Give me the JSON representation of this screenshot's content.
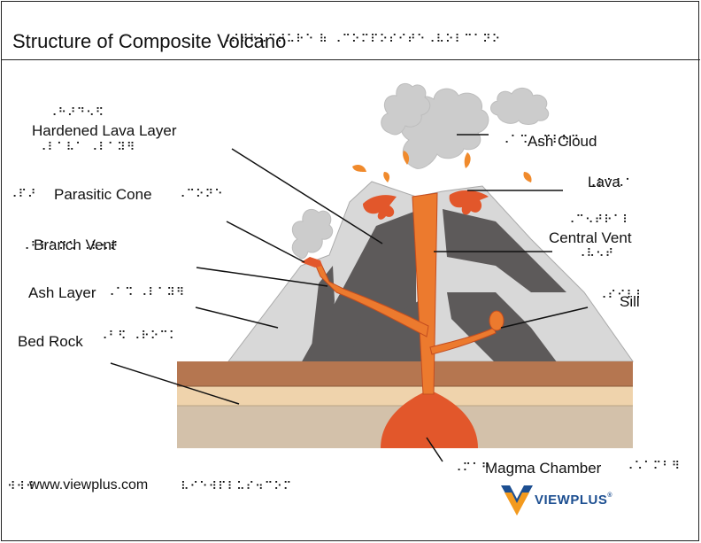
{
  "title": "Structure of Composite Volcano",
  "labels": {
    "hardened_lava_layer": "Hardened Lava Layer",
    "ash_cloud": "Ash Cloud",
    "parasitic_cone": "Parasitic Cone",
    "lava": "Lava",
    "central_vent": "Central Vent",
    "branch_vent": "Branch Vent",
    "ash_layer": "Ash Layer",
    "sill": "Sill",
    "bed_rock": "Bed Rock",
    "magma_chamber": "Magma Chamber"
  },
  "footer": {
    "url": "www.viewplus.com",
    "logo": "VIEWPLUS",
    "logo_mark": "®"
  },
  "braille": {
    "title": "⠠⠎⠞⠗⠥⠉⠞⠥⠗⠑ ⠷ ⠠⠉⠕⠍⠏⠕⠎⠊⠞⠑",
    "title_right": "⠠⠧⠕⠇⠉⠁⠝⠕",
    "hardened_top": "⠠⠓⠜⠙⠢⠫",
    "hardened_bottom": "⠠⠇⠁⠧⠁ ⠠⠇⠁⠽⠻",
    "ash_cloud": "⠠⠁⠩ ⠠⠉⠇⠳⠙",
    "parasitic_cone_left": "⠠⠏⠜",
    "parasitic_cone_right": "⠠⠉⠕⠝⠑",
    "lava": "⠠⠇⠁⠧⠁",
    "central_vent_top": "⠠⠉⠢⠞⠗⠁⠇",
    "central_vent_bottom": "⠠⠧⠢⠞",
    "branch_vent": "⠠⠃⠗⠁⠝⠡ ⠠⠧⠢⠞",
    "ash_layer": "⠠⠁⠩ ⠠⠇⠁⠽⠻",
    "sill": "⠠⠎⠊⠇⠇",
    "bed_rock": "⠠⠃⠫ ⠠⠗⠕⠉⠅",
    "magma_chamber_left": "⠠⠍⠁⠛",
    "magma_chamber_right": "⠠⠡⠁⠍⠃⠻",
    "url_left": "⠺⠺⠺",
    "url_right": "⠧⠊⠑⠺⠏⠇⠥⠎⠲⠉⠕⠍"
  },
  "colors": {
    "mountain": "#d8d8d8",
    "dark_rock": "#5d5a5a",
    "magma": "#e2572b",
    "vent": "#ec7a2e",
    "crust_top": "#b57650",
    "crust_mid": "#efd3ac",
    "crust_bottom": "#d3c1aa",
    "smoke": "#cccccc",
    "logo_blue": "#1d4f91",
    "logo_orange": "#f39a1e"
  }
}
